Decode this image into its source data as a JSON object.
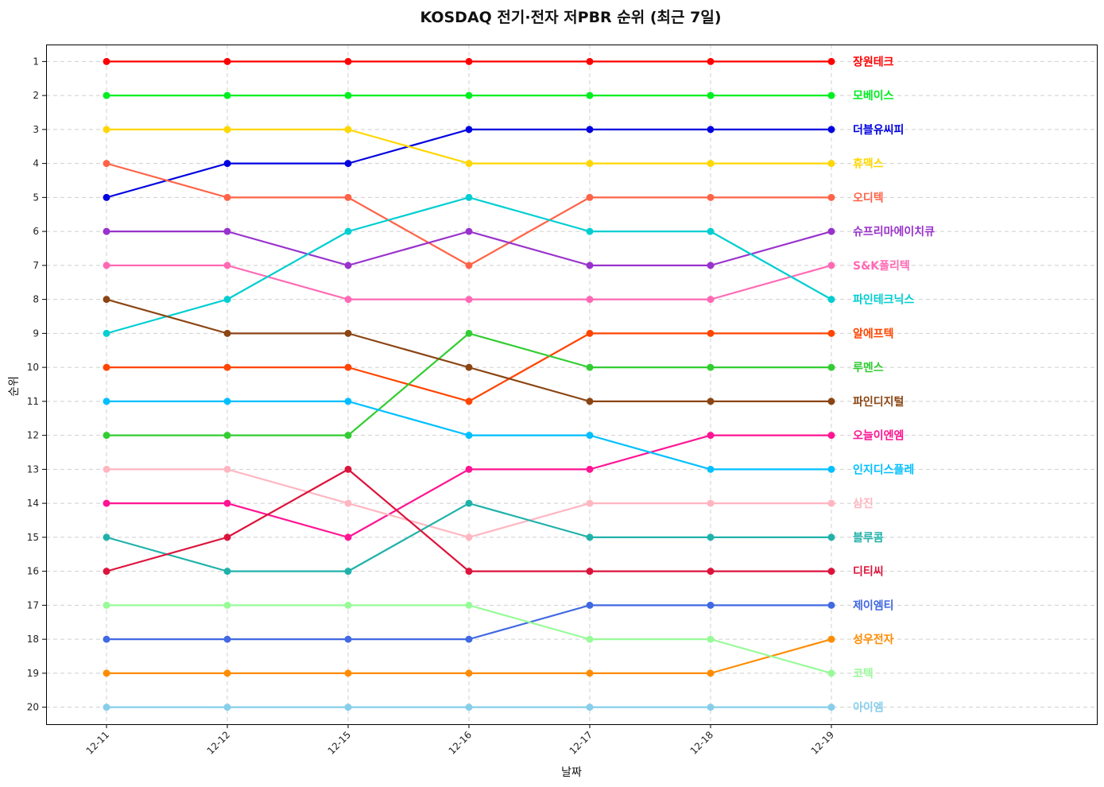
{
  "chart_data": {
    "type": "line",
    "title": "KOSDAQ 전기·전자 저PBR 순위 (최근 7일)",
    "xlabel": "날짜",
    "ylabel": "순위",
    "categories": [
      "12-11",
      "12-12",
      "12-15",
      "12-16",
      "12-17",
      "12-18",
      "12-19"
    ],
    "y_ticks": [
      "1",
      "2",
      "3",
      "4",
      "5",
      "6",
      "7",
      "8",
      "9",
      "10",
      "11",
      "12",
      "13",
      "14",
      "15",
      "16",
      "17",
      "18",
      "19",
      "20"
    ],
    "ylim": [
      20.5,
      0.5
    ],
    "y_inverted": true,
    "grid": true,
    "labels_at_line_end": true,
    "series": [
      {
        "name": "장원테크",
        "color": "#ff0000",
        "values": [
          1,
          1,
          1,
          1,
          1,
          1,
          1
        ]
      },
      {
        "name": "모베이스",
        "color": "#00ee22",
        "values": [
          2,
          2,
          2,
          2,
          2,
          2,
          2
        ]
      },
      {
        "name": "더블유씨피",
        "color": "#0000e0",
        "values": [
          5,
          4,
          4,
          3,
          3,
          3,
          3
        ]
      },
      {
        "name": "휴맥스",
        "color": "#ffd700",
        "values": [
          3,
          3,
          3,
          4,
          4,
          4,
          4
        ]
      },
      {
        "name": "오디텍",
        "color": "#ff6347",
        "values": [
          4,
          5,
          5,
          7,
          5,
          5,
          5
        ]
      },
      {
        "name": "슈프리마에이치큐",
        "color": "#9932cc",
        "values": [
          6,
          6,
          7,
          6,
          7,
          7,
          6
        ]
      },
      {
        "name": "S&K폴리텍",
        "color": "#ff69b4",
        "values": [
          7,
          7,
          8,
          8,
          8,
          8,
          7
        ]
      },
      {
        "name": "파인테크닉스",
        "color": "#00ced1",
        "values": [
          9,
          8,
          6,
          5,
          6,
          6,
          8
        ]
      },
      {
        "name": "알에프텍",
        "color": "#ff4500",
        "values": [
          10,
          10,
          10,
          11,
          9,
          9,
          9
        ]
      },
      {
        "name": "루멘스",
        "color": "#32cd32",
        "values": [
          12,
          12,
          12,
          9,
          10,
          10,
          10
        ]
      },
      {
        "name": "파인디지털",
        "color": "#8b4513",
        "values": [
          8,
          9,
          9,
          10,
          11,
          11,
          11
        ]
      },
      {
        "name": "오늘이엔엠",
        "color": "#ff1493",
        "values": [
          14,
          14,
          15,
          13,
          13,
          12,
          12
        ]
      },
      {
        "name": "인지디스플레",
        "color": "#00bfff",
        "values": [
          11,
          11,
          11,
          12,
          12,
          13,
          13
        ]
      },
      {
        "name": "삼진",
        "color": "#ffb6c1",
        "values": [
          13,
          13,
          14,
          15,
          14,
          14,
          14
        ]
      },
      {
        "name": "블루콤",
        "color": "#20b2aa",
        "values": [
          15,
          16,
          16,
          14,
          15,
          15,
          15
        ]
      },
      {
        "name": "디티씨",
        "color": "#dc143c",
        "values": [
          16,
          15,
          13,
          16,
          16,
          16,
          16
        ]
      },
      {
        "name": "제이엠티",
        "color": "#4169e1",
        "values": [
          18,
          18,
          18,
          18,
          17,
          17,
          17
        ]
      },
      {
        "name": "성우전자",
        "color": "#ff8c00",
        "values": [
          19,
          19,
          19,
          19,
          19,
          19,
          18
        ]
      },
      {
        "name": "코텍",
        "color": "#98fb98",
        "values": [
          17,
          17,
          17,
          17,
          18,
          18,
          19
        ]
      },
      {
        "name": "아이엠",
        "color": "#87ceeb",
        "values": [
          20,
          20,
          20,
          20,
          20,
          20,
          20
        ]
      }
    ]
  }
}
